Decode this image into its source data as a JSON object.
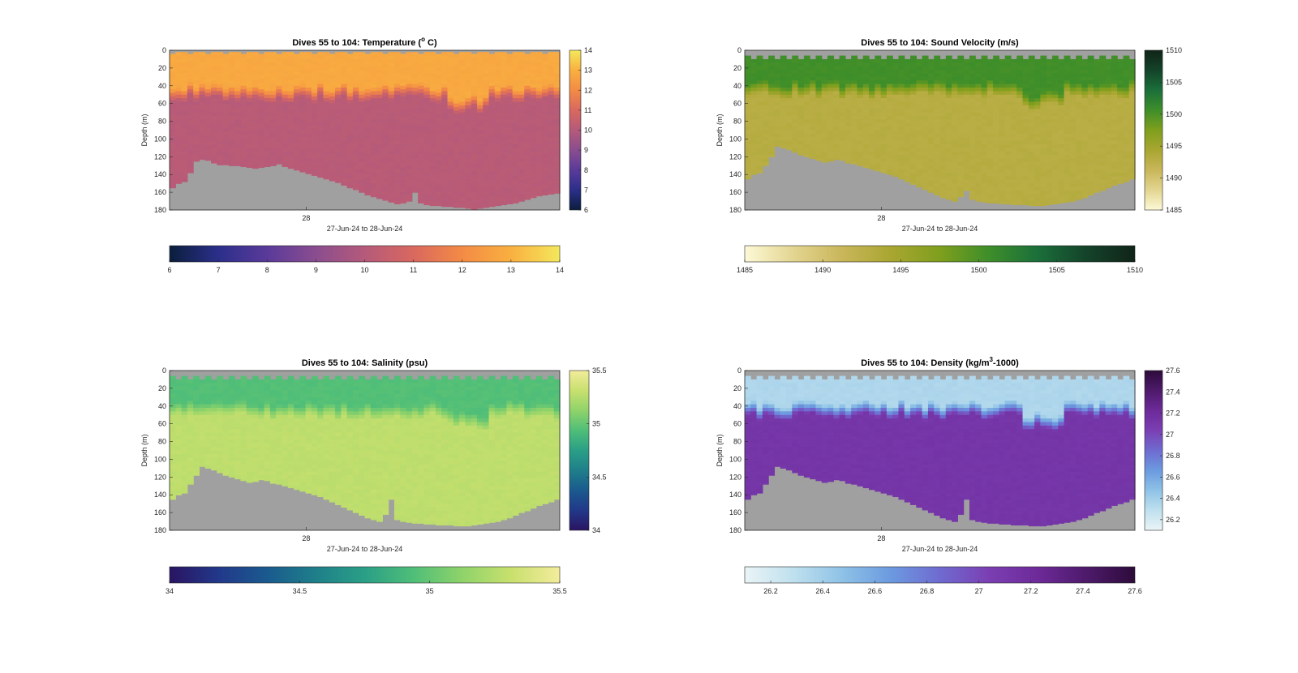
{
  "figure": {
    "background": "#ffffff"
  },
  "chart_data": [
    {
      "type": "heatmap",
      "title": "Dives 55 to 104: Temperature (°C)",
      "title_parts": {
        "pre": "Dives 55 to 104: Temperature (",
        "sup": "o",
        "post": " C)"
      },
      "xlabel": "27-Jun-24 to 28-Jun-24",
      "ylabel": "Depth (m)",
      "x_ticks": [
        "28"
      ],
      "y_ticks": [
        "0",
        "20",
        "40",
        "60",
        "80",
        "100",
        "120",
        "140",
        "160",
        "180"
      ],
      "ylim": [
        0,
        180
      ],
      "x_dives": [
        55,
        104
      ],
      "colorbar_vertical": {
        "range": [
          6,
          14
        ],
        "ticks": [
          "6",
          "7",
          "8",
          "9",
          "10",
          "11",
          "12",
          "13",
          "14"
        ]
      },
      "colorbar_horizontal": {
        "range": [
          6,
          14
        ],
        "ticks": [
          "6",
          "7",
          "8",
          "9",
          "10",
          "11",
          "12",
          "13",
          "14"
        ]
      },
      "colormap": [
        "#0b1e3c",
        "#2b2f8a",
        "#5a3a9a",
        "#8a4d8f",
        "#b55a7a",
        "#d9685f",
        "#f38b45",
        "#f9b040",
        "#f4e85c"
      ],
      "upper_value": 12.8,
      "mixed_layer_depth_m": 45,
      "lower_value": 10.1,
      "no_data_color": "#a0a0a0",
      "bottom_depth_m": [
        155,
        150,
        148,
        138,
        125,
        123,
        124,
        127,
        129,
        129,
        130,
        130,
        131,
        132,
        133,
        132,
        131,
        130,
        128,
        131,
        133,
        135,
        137,
        139,
        141,
        143,
        145,
        147,
        149,
        152,
        155,
        157,
        160,
        163,
        165,
        167,
        169,
        171,
        173,
        172,
        170,
        160,
        172,
        174,
        175,
        175,
        176,
        176,
        177,
        177,
        178,
        179,
        178,
        177,
        176,
        175,
        174,
        173,
        172,
        170,
        168,
        166,
        164,
        163,
        162,
        161
      ]
    },
    {
      "type": "heatmap",
      "title": "Dives 55 to 104: Sound Velocity (m/s)",
      "xlabel": "27-Jun-24 to 28-Jun-24",
      "ylabel": "Depth (m)",
      "x_ticks": [
        "28"
      ],
      "y_ticks": [
        "0",
        "20",
        "40",
        "60",
        "80",
        "100",
        "120",
        "140",
        "160",
        "180"
      ],
      "ylim": [
        0,
        180
      ],
      "colorbar_vertical": {
        "range": [
          1485,
          1510
        ],
        "ticks": [
          "1485",
          "1490",
          "1495",
          "1500",
          "1505",
          "1510"
        ]
      },
      "colorbar_horizontal": {
        "range": [
          1485,
          1510
        ],
        "ticks": [
          "1485",
          "1490",
          "1495",
          "1500",
          "1505",
          "1510"
        ]
      },
      "colormap": [
        "#fdf9d6",
        "#e3d591",
        "#c9b65a",
        "#a9a631",
        "#7f9f1d",
        "#3e8e2a",
        "#1b6f3a",
        "#14432a",
        "#102418"
      ],
      "upper_value": 1500.5,
      "mixed_layer_depth_m": 42,
      "lower_value": 1493.0,
      "no_data_color": "#a0a0a0",
      "surface_gap": true,
      "bottom_depth_m": [
        145,
        140,
        138,
        130,
        120,
        108,
        110,
        112,
        115,
        118,
        120,
        122,
        124,
        126,
        125,
        123,
        124,
        127,
        128,
        130,
        132,
        134,
        136,
        138,
        140,
        142,
        145,
        148,
        151,
        154,
        157,
        160,
        163,
        166,
        168,
        170,
        165,
        158,
        168,
        170,
        171,
        172,
        172,
        173,
        173,
        174,
        174,
        174,
        175,
        175,
        175,
        174,
        173,
        172,
        171,
        170,
        168,
        166,
        163,
        160,
        158,
        155,
        152,
        150,
        148,
        145
      ]
    },
    {
      "type": "heatmap",
      "title": "Dives 55 to 104: Salinity (psu)",
      "xlabel": "27-Jun-24 to 28-Jun-24",
      "ylabel": "Depth (m)",
      "x_ticks": [
        "28"
      ],
      "y_ticks": [
        "0",
        "20",
        "40",
        "60",
        "80",
        "100",
        "120",
        "140",
        "160",
        "180"
      ],
      "ylim": [
        0,
        180
      ],
      "colorbar_vertical": {
        "range": [
          34,
          35.5
        ],
        "ticks": [
          "34",
          "34.5",
          "35",
          "35.5"
        ]
      },
      "colorbar_horizontal": {
        "range": [
          34,
          35.5
        ],
        "ticks": [
          "34",
          "34.5",
          "35",
          "35.5"
        ]
      },
      "colormap": [
        "#2a1462",
        "#22388a",
        "#1a5a8e",
        "#1f7f8a",
        "#2a9f86",
        "#4fbe78",
        "#8fd36a",
        "#c8e06e",
        "#f3ec9c"
      ],
      "upper_value": 34.95,
      "mixed_layer_depth_m": 42,
      "lower_value": 35.28,
      "no_data_color": "#a0a0a0",
      "surface_gap": true,
      "bottom_depth_m": [
        145,
        140,
        138,
        128,
        118,
        108,
        110,
        112,
        115,
        118,
        120,
        122,
        124,
        126,
        125,
        123,
        124,
        127,
        128,
        130,
        132,
        134,
        136,
        138,
        140,
        142,
        145,
        148,
        151,
        154,
        157,
        160,
        163,
        166,
        168,
        170,
        162,
        145,
        168,
        170,
        171,
        172,
        172,
        173,
        173,
        174,
        174,
        174,
        175,
        175,
        175,
        174,
        173,
        172,
        171,
        170,
        168,
        166,
        163,
        160,
        158,
        155,
        152,
        150,
        148,
        145
      ]
    },
    {
      "type": "heatmap",
      "title": "Dives 55 to 104: Density (kg/m³-1000)",
      "title_parts": {
        "pre": "Dives 55 to 104: Density (kg/m",
        "sup": "3",
        "post": "-1000)"
      },
      "xlabel": "27-Jun-24 to 28-Jun-24",
      "ylabel": "Depth (m)",
      "x_ticks": [
        "28"
      ],
      "y_ticks": [
        "0",
        "20",
        "40",
        "60",
        "80",
        "100",
        "120",
        "140",
        "160",
        "180"
      ],
      "ylim": [
        0,
        180
      ],
      "colorbar_vertical": {
        "range": [
          26.1,
          27.6
        ],
        "ticks": [
          "26.2",
          "26.4",
          "26.6",
          "26.8",
          "27",
          "27.2",
          "27.4",
          "27.6"
        ]
      },
      "colorbar_horizontal": {
        "range": [
          26.1,
          27.6
        ],
        "ticks": [
          "26.2",
          "26.4",
          "26.6",
          "26.8",
          "27",
          "27.2",
          "27.4",
          "27.6"
        ]
      },
      "colormap": [
        "#eaf4f6",
        "#bfe0ee",
        "#8ec2e6",
        "#6c9ae0",
        "#6f6bd0",
        "#7b3fb3",
        "#6d2a99",
        "#4e1a6b",
        "#2d0b3a"
      ],
      "upper_value": 26.35,
      "mixed_layer_depth_m": 42,
      "lower_value": 27.12,
      "no_data_color": "#a0a0a0",
      "surface_gap": true,
      "bottom_depth_m": [
        145,
        140,
        138,
        128,
        118,
        108,
        110,
        112,
        115,
        118,
        120,
        122,
        124,
        126,
        125,
        123,
        124,
        127,
        128,
        130,
        132,
        134,
        136,
        138,
        140,
        142,
        145,
        148,
        151,
        154,
        157,
        160,
        163,
        166,
        168,
        170,
        162,
        145,
        168,
        170,
        171,
        172,
        172,
        173,
        173,
        174,
        174,
        174,
        175,
        175,
        175,
        174,
        173,
        172,
        171,
        170,
        168,
        166,
        163,
        160,
        158,
        155,
        152,
        150,
        148,
        145
      ]
    }
  ]
}
